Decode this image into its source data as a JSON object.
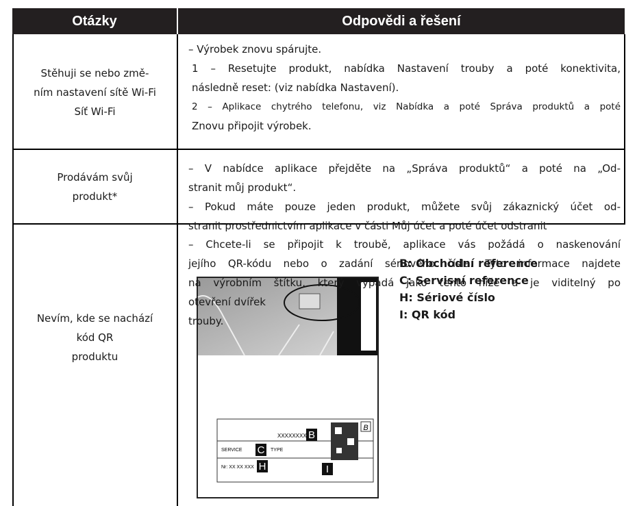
{
  "header": {
    "questions": "Otázky",
    "answers": "Odpovědi a řešení"
  },
  "rows": [
    {
      "question": [
        "Stěhuji se nebo změ-",
        "ním nastavení sítě Wi-Fi",
        "Síť Wi-Fi"
      ],
      "answer": [
        [
          "– Výrobek znovu spárujte."
        ],
        [
          "1 – Resetujte produkt, nabídka Nastavení trouby a poté konektivita,",
          "následně reset: (viz nabídka Nastavení)."
        ],
        [
          "2 – Aplikace chytrého telefonu, viz Nabídka a poté Správa produktů a poté",
          "Znovu připojit výrobek."
        ]
      ]
    },
    {
      "question": [
        "Prodávám svůj",
        "produkt*"
      ],
      "answer": [
        [
          "– V nabídce aplikace přejděte na „Správa produktů“ a poté na „Od-",
          "stranit můj produkt“."
        ],
        [
          "– Pokud máte pouze jeden produkt, můžete svůj zákaznický účet od-",
          "stranit prostřednictvím aplikace v části Můj účet a poté účet odstranit"
        ]
      ]
    },
    {
      "question": [
        "Nevím, kde se nachází",
        "kód QR",
        "produktu"
      ],
      "answer": [
        [
          "– Chcete-li se připojit k troubě, aplikace vás požádá o naskenování",
          "jejího QR-kódu nebo o zadání sériového čísla. Tyto informace najdete",
          "na výrobním štítku, který vypadá jako tento níže a je viditelný po",
          "otevření dvířek"
        ],
        [
          "trouby."
        ]
      ]
    }
  ],
  "legend": [
    "B: Obchodní reference",
    "C: Servisní reference",
    "H: Sériové číslo",
    "I: QR kód"
  ],
  "illustration": {
    "number": "XXXXXXXX",
    "b": "B",
    "service": "SERVICE",
    "c": "C",
    "type": "TYPE",
    "nr": "Nr: XX XX XXX",
    "h": "H",
    "i": "I",
    "b2": "B"
  }
}
